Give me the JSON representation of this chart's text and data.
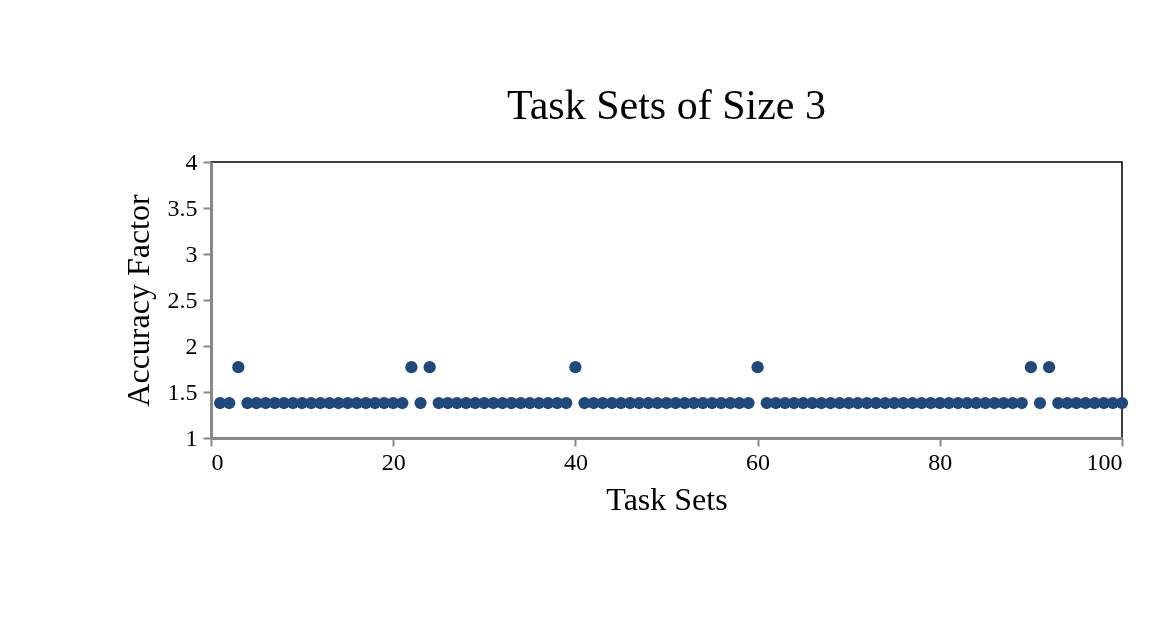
{
  "chart_data": {
    "type": "scatter",
    "title": "Task Sets of Size 3",
    "xlabel": "Task Sets",
    "ylabel": "Accuracy Factor",
    "x": [
      1,
      2,
      3,
      4,
      5,
      6,
      7,
      8,
      9,
      10,
      11,
      12,
      13,
      14,
      15,
      16,
      17,
      18,
      19,
      20,
      21,
      22,
      23,
      24,
      25,
      26,
      27,
      28,
      29,
      30,
      31,
      32,
      33,
      34,
      35,
      36,
      37,
      38,
      39,
      40,
      41,
      42,
      43,
      44,
      45,
      46,
      47,
      48,
      49,
      50,
      51,
      52,
      53,
      54,
      55,
      56,
      57,
      58,
      59,
      60,
      61,
      62,
      63,
      64,
      65,
      66,
      67,
      68,
      69,
      70,
      71,
      72,
      73,
      74,
      75,
      76,
      77,
      78,
      79,
      80,
      81,
      82,
      83,
      84,
      85,
      86,
      87,
      88,
      89,
      90,
      91,
      92,
      93,
      94,
      95,
      96,
      97,
      98,
      99,
      100
    ],
    "series": [
      {
        "color": "#1f497d",
        "values": [
          1.38,
          1.38,
          1.77,
          1.38,
          1.38,
          1.38,
          1.38,
          1.38,
          1.38,
          1.38,
          1.38,
          1.38,
          1.38,
          1.38,
          1.38,
          1.38,
          1.38,
          1.38,
          1.38,
          1.38,
          1.38,
          1.77,
          1.38,
          1.77,
          1.38,
          1.38,
          1.38,
          1.38,
          1.38,
          1.38,
          1.38,
          1.38,
          1.38,
          1.38,
          1.38,
          1.38,
          1.38,
          1.38,
          1.38,
          1.77,
          1.38,
          1.38,
          1.38,
          1.38,
          1.38,
          1.38,
          1.38,
          1.38,
          1.38,
          1.38,
          1.38,
          1.38,
          1.38,
          1.38,
          1.38,
          1.38,
          1.38,
          1.38,
          1.38,
          1.77,
          1.38,
          1.38,
          1.38,
          1.38,
          1.38,
          1.38,
          1.38,
          1.38,
          1.38,
          1.38,
          1.38,
          1.38,
          1.38,
          1.38,
          1.38,
          1.38,
          1.38,
          1.38,
          1.38,
          1.38,
          1.38,
          1.38,
          1.38,
          1.38,
          1.38,
          1.38,
          1.38,
          1.38,
          1.38,
          1.77,
          1.38,
          1.77,
          1.38,
          1.38,
          1.38,
          1.38,
          1.38,
          1.38,
          1.38,
          1.38
        ]
      }
    ],
    "xlim": [
      0,
      100
    ],
    "xticks": [
      0,
      20,
      40,
      60,
      80,
      100
    ],
    "ylim": [
      1,
      4
    ],
    "yticks": [
      1,
      1.5,
      2,
      2.5,
      3,
      3.5,
      4
    ],
    "grid": false,
    "legend": false,
    "marker": "circle"
  }
}
